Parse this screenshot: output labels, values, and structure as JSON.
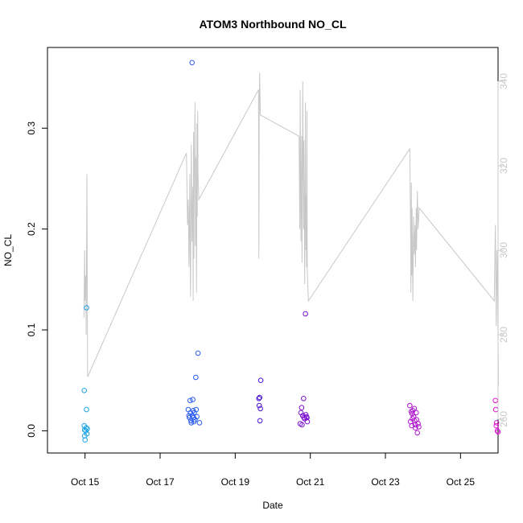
{
  "chart_data": {
    "type": "scatter",
    "title": "ATOM3 Northbound NO_CL",
    "xlabel": "Date",
    "ylabel": "NO_CL",
    "x_ticks": [
      {
        "day": 14.75,
        "label": "Oct 15"
      },
      {
        "day": 16.75,
        "label": "Oct 17"
      },
      {
        "day": 18.75,
        "label": "Oct 19"
      },
      {
        "day": 20.75,
        "label": "Oct 21"
      },
      {
        "day": 22.75,
        "label": "Oct 23"
      },
      {
        "day": 24.75,
        "label": "Oct 25"
      }
    ],
    "xlim": [
      13.75,
      25.75
    ],
    "ylim": [
      -0.022,
      0.38
    ],
    "y_ticks": [
      0.0,
      0.1,
      0.2,
      0.3
    ],
    "y_tick_labels": [
      "0.0",
      "0.1",
      "0.2",
      "0.3"
    ],
    "y2lim": [
      252,
      348
    ],
    "y2_ticks": [
      260,
      280,
      300,
      320,
      340
    ],
    "y2_tick_labels": [
      "260",
      "280",
      "300",
      "320",
      "340"
    ],
    "grid": false,
    "series": [
      {
        "color": "#1aa3e8",
        "points": [
          [
            14.73,
            0.04
          ],
          [
            14.73,
            0.005
          ],
          [
            14.74,
            0.001
          ],
          [
            14.74,
            -0.005
          ],
          [
            14.75,
            -0.009
          ],
          [
            14.77,
            0.0
          ],
          [
            14.78,
            0.003
          ],
          [
            14.79,
            0.122
          ],
          [
            14.79,
            0.021
          ],
          [
            14.8,
            -0.003
          ],
          [
            14.81,
            0.002
          ]
        ]
      },
      {
        "color": "#2a5cf0",
        "points": [
          [
            17.5,
            0.021
          ],
          [
            17.52,
            0.015
          ],
          [
            17.53,
            0.013
          ],
          [
            17.55,
            0.03
          ],
          [
            17.56,
            0.018
          ],
          [
            17.57,
            0.01
          ],
          [
            17.58,
            0.008
          ],
          [
            17.6,
            0.365
          ],
          [
            17.61,
            0.015
          ],
          [
            17.62,
            0.031
          ],
          [
            17.63,
            0.02
          ],
          [
            17.64,
            0.013
          ],
          [
            17.65,
            0.009
          ],
          [
            17.66,
            0.018
          ],
          [
            17.68,
            0.011
          ],
          [
            17.7,
            0.053
          ],
          [
            17.71,
            0.021
          ],
          [
            17.73,
            0.014
          ],
          [
            17.76,
            0.077
          ],
          [
            17.8,
            0.008
          ]
        ]
      },
      {
        "color": "#4a12d6",
        "points": [
          [
            19.38,
            0.032
          ],
          [
            19.39,
            0.025
          ],
          [
            19.4,
            0.033
          ],
          [
            19.41,
            0.01
          ],
          [
            19.42,
            0.022
          ],
          [
            19.43,
            0.05
          ]
        ]
      },
      {
        "color": "#7b10d2",
        "points": [
          [
            20.48,
            0.007
          ],
          [
            20.5,
            0.018
          ],
          [
            20.52,
            0.023
          ],
          [
            20.53,
            0.006
          ],
          [
            20.55,
            0.015
          ],
          [
            20.57,
            0.032
          ],
          [
            20.58,
            0.013
          ],
          [
            20.6,
            0.012
          ],
          [
            20.62,
            0.116
          ],
          [
            20.63,
            0.016
          ],
          [
            20.65,
            0.014
          ],
          [
            20.66,
            0.013
          ],
          [
            20.67,
            0.009
          ]
        ]
      },
      {
        "color": "#b012d0",
        "points": [
          [
            23.4,
            0.025
          ],
          [
            23.42,
            0.009
          ],
          [
            23.44,
            0.019
          ],
          [
            23.45,
            0.005
          ],
          [
            23.46,
            0.017
          ],
          [
            23.47,
            0.012
          ],
          [
            23.48,
            0.02
          ],
          [
            23.5,
            0.014
          ],
          [
            23.52,
            0.022
          ],
          [
            23.53,
            0.01
          ],
          [
            23.54,
            0.006
          ],
          [
            23.55,
            0.003
          ],
          [
            23.57,
            0.018
          ],
          [
            23.58,
            0.011
          ],
          [
            23.6,
            -0.002
          ],
          [
            23.62,
            0.007
          ],
          [
            23.64,
            0.004
          ]
        ]
      },
      {
        "color": "#e010d4",
        "points": [
          [
            25.68,
            0.03
          ],
          [
            25.69,
            0.021
          ],
          [
            25.7,
            0.005
          ],
          [
            25.71,
            0.008
          ],
          [
            25.73,
            0.0
          ],
          [
            25.75,
            -0.001
          ]
        ]
      }
    ],
    "secondary_line": {
      "color": "#c8c8c8",
      "axis": "right",
      "points": [
        [
          14.72,
          284
        ],
        [
          14.74,
          300
        ],
        [
          14.75,
          288
        ],
        [
          14.77,
          294
        ],
        [
          14.78,
          280
        ],
        [
          14.79,
          296
        ],
        [
          14.8,
          318
        ],
        [
          14.82,
          270
        ],
        [
          17.45,
          323
        ],
        [
          17.48,
          306
        ],
        [
          17.5,
          312
        ],
        [
          17.52,
          296
        ],
        [
          17.54,
          318
        ],
        [
          17.55,
          300
        ],
        [
          17.56,
          289
        ],
        [
          17.58,
          325
        ],
        [
          17.6,
          302
        ],
        [
          17.62,
          315
        ],
        [
          17.63,
          288
        ],
        [
          17.64,
          328
        ],
        [
          17.65,
          298
        ],
        [
          17.66,
          318
        ],
        [
          17.68,
          335
        ],
        [
          17.69,
          301
        ],
        [
          17.7,
          322
        ],
        [
          17.72,
          290
        ],
        [
          17.73,
          330
        ],
        [
          17.74,
          308
        ],
        [
          17.75,
          333
        ],
        [
          17.76,
          318
        ],
        [
          17.78,
          312
        ],
        [
          19.37,
          338
        ],
        [
          19.38,
          298
        ],
        [
          19.39,
          333
        ],
        [
          19.4,
          342
        ],
        [
          19.42,
          332
        ],
        [
          20.45,
          327
        ],
        [
          20.47,
          305
        ],
        [
          20.48,
          338
        ],
        [
          20.5,
          302
        ],
        [
          20.52,
          327
        ],
        [
          20.53,
          297
        ],
        [
          20.55,
          340
        ],
        [
          20.57,
          305
        ],
        [
          20.58,
          326
        ],
        [
          20.6,
          292
        ],
        [
          20.62,
          335
        ],
        [
          20.63,
          300
        ],
        [
          20.64,
          313
        ],
        [
          20.65,
          296
        ],
        [
          20.66,
          333
        ],
        [
          20.67,
          295
        ],
        [
          20.7,
          288
        ],
        [
          23.4,
          324
        ],
        [
          23.42,
          304
        ],
        [
          23.43,
          290
        ],
        [
          23.44,
          316
        ],
        [
          23.45,
          294
        ],
        [
          23.46,
          310
        ],
        [
          23.48,
          288
        ],
        [
          23.5,
          308
        ],
        [
          23.52,
          299
        ],
        [
          23.54,
          306
        ],
        [
          23.55,
          296
        ],
        [
          23.57,
          310
        ],
        [
          23.58,
          300
        ],
        [
          23.6,
          314
        ],
        [
          23.62,
          305
        ],
        [
          23.65,
          310
        ],
        [
          25.65,
          288
        ],
        [
          25.66,
          295
        ],
        [
          25.68,
          306
        ],
        [
          25.69,
          292
        ],
        [
          25.7,
          282
        ],
        [
          25.72,
          300
        ],
        [
          25.74,
          289
        ],
        [
          25.76,
          268
        ]
      ]
    }
  }
}
